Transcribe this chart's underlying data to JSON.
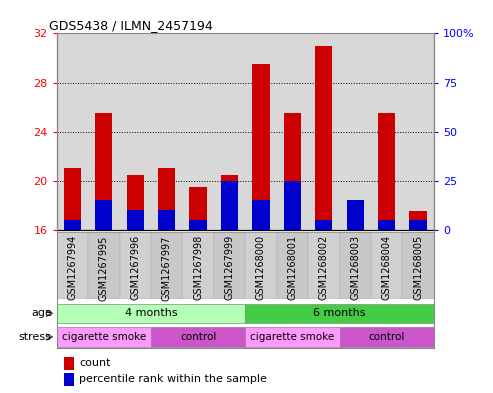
{
  "title": "GDS5438 / ILMN_2457194",
  "samples": [
    "GSM1267994",
    "GSM1267995",
    "GSM1267996",
    "GSM1267997",
    "GSM1267998",
    "GSM1267999",
    "GSM1268000",
    "GSM1268001",
    "GSM1268002",
    "GSM1268003",
    "GSM1268004",
    "GSM1268005"
  ],
  "count_values": [
    21.0,
    25.5,
    20.5,
    21.0,
    19.5,
    20.5,
    29.5,
    25.5,
    31.0,
    16.5,
    25.5,
    17.5
  ],
  "percentile_values": [
    5,
    15,
    10,
    10,
    5,
    25,
    15,
    25,
    5,
    15,
    5,
    5
  ],
  "count_base": 16,
  "left_ylim": [
    16,
    32
  ],
  "left_yticks": [
    16,
    20,
    24,
    28,
    32
  ],
  "right_ylim": [
    0,
    100
  ],
  "right_yticks": [
    0,
    25,
    50,
    75,
    100
  ],
  "right_yticklabels": [
    "0",
    "25",
    "50",
    "75",
    "100%"
  ],
  "age_groups": [
    {
      "label": "4 months",
      "start": 0,
      "end": 6,
      "color": "#b3ffb3"
    },
    {
      "label": "6 months",
      "start": 6,
      "end": 12,
      "color": "#44cc44"
    }
  ],
  "stress_groups": [
    {
      "label": "cigarette smoke",
      "start": 0,
      "end": 3,
      "color": "#ff99ff"
    },
    {
      "label": "control",
      "start": 3,
      "end": 6,
      "color": "#cc55cc"
    },
    {
      "label": "cigarette smoke",
      "start": 6,
      "end": 9,
      "color": "#ff99ff"
    },
    {
      "label": "control",
      "start": 9,
      "end": 12,
      "color": "#cc55cc"
    }
  ],
  "bar_width": 0.55,
  "count_color": "#cc0000",
  "percentile_color": "#0000cc",
  "plot_bg_color": "#d8d8d8",
  "label_bg_color": "#c8c8c8"
}
